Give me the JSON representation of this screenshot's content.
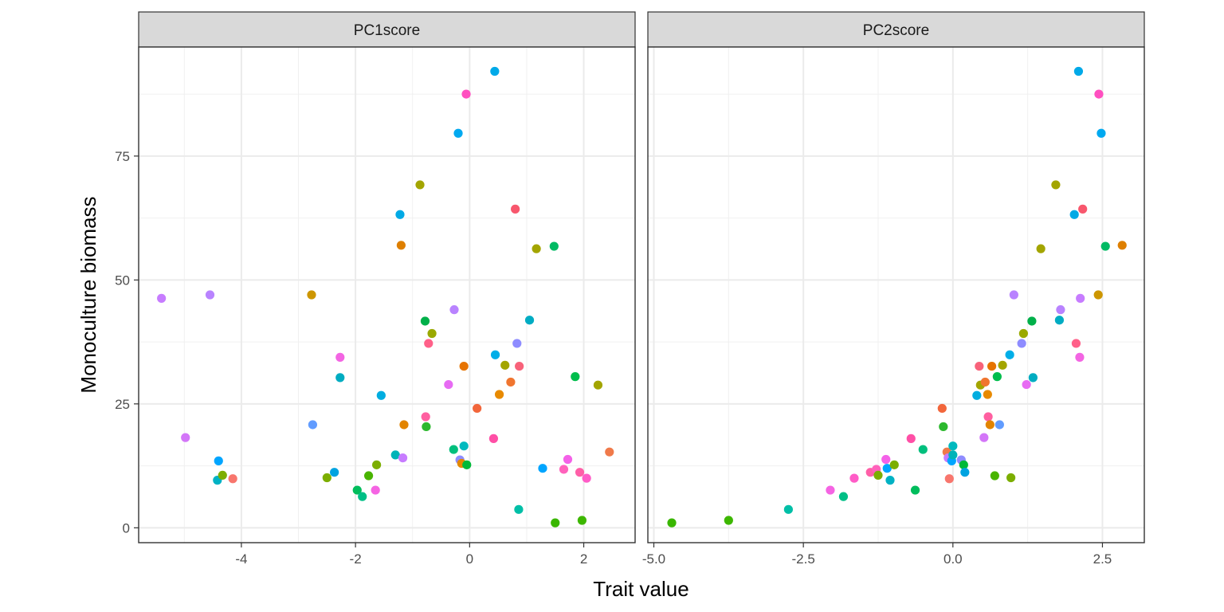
{
  "chart_data": {
    "type": "scatter",
    "xlabel": "Trait value",
    "ylabel": "Monoculture biomass",
    "legend": "none",
    "grid": true,
    "ylim": [
      -3.0,
      97.0
    ],
    "yticks": [
      0,
      25,
      50,
      75
    ],
    "panels": [
      {
        "strip": "PC1score",
        "xlim": [
          -5.8,
          2.9
        ],
        "xticks": [
          -4,
          -2,
          0,
          2
        ],
        "points": [
          {
            "x": -5.4,
            "y": 46.3,
            "color": "#C77CFF"
          },
          {
            "x": -4.55,
            "y": 47.0,
            "color": "#B983FF"
          },
          {
            "x": -4.98,
            "y": 18.2,
            "color": "#D376F8"
          },
          {
            "x": -4.4,
            "y": 13.5,
            "color": "#00A5FF"
          },
          {
            "x": -4.42,
            "y": 9.6,
            "color": "#00B2C4"
          },
          {
            "x": -4.33,
            "y": 10.6,
            "color": "#7CAE00"
          },
          {
            "x": -4.15,
            "y": 9.9,
            "color": "#F8766D"
          },
          {
            "x": -2.77,
            "y": 47.0,
            "color": "#CD9600"
          },
          {
            "x": -2.75,
            "y": 20.8,
            "color": "#619CFF"
          },
          {
            "x": -2.27,
            "y": 34.4,
            "color": "#F365E3"
          },
          {
            "x": -2.27,
            "y": 30.3,
            "color": "#00ACC1"
          },
          {
            "x": -2.5,
            "y": 10.1,
            "color": "#7CAE00"
          },
          {
            "x": -2.37,
            "y": 11.2,
            "color": "#00A3E0"
          },
          {
            "x": -1.97,
            "y": 7.6,
            "color": "#00BD5C"
          },
          {
            "x": -1.88,
            "y": 6.3,
            "color": "#00BF86"
          },
          {
            "x": -1.77,
            "y": 10.5,
            "color": "#49B400"
          },
          {
            "x": -1.63,
            "y": 12.7,
            "color": "#7CAE00"
          },
          {
            "x": -1.65,
            "y": 7.6,
            "color": "#F564E3"
          },
          {
            "x": -1.55,
            "y": 26.7,
            "color": "#00ADE0"
          },
          {
            "x": -1.3,
            "y": 14.7,
            "color": "#00B3B8"
          },
          {
            "x": -1.22,
            "y": 63.2,
            "color": "#00A9E5"
          },
          {
            "x": -1.2,
            "y": 57.0,
            "color": "#DE7F00"
          },
          {
            "x": -1.15,
            "y": 20.8,
            "color": "#E28400"
          },
          {
            "x": -1.17,
            "y": 14.1,
            "color": "#C77CFF"
          },
          {
            "x": -0.87,
            "y": 69.2,
            "color": "#A3A500"
          },
          {
            "x": -0.78,
            "y": 41.7,
            "color": "#00B04A"
          },
          {
            "x": -0.77,
            "y": 22.4,
            "color": "#FF5FA0"
          },
          {
            "x": -0.76,
            "y": 20.4,
            "color": "#2CB82E"
          },
          {
            "x": -0.72,
            "y": 37.2,
            "color": "#FF6089"
          },
          {
            "x": -0.66,
            "y": 39.2,
            "color": "#9AA900"
          },
          {
            "x": -0.37,
            "y": 28.9,
            "color": "#E76BF3"
          },
          {
            "x": -0.28,
            "y": 15.8,
            "color": "#00BF7D"
          },
          {
            "x": -0.27,
            "y": 44.0,
            "color": "#B983FF"
          },
          {
            "x": -0.2,
            "y": 79.6,
            "color": "#00A9F0"
          },
          {
            "x": -0.17,
            "y": 13.7,
            "color": "#8F8CFF"
          },
          {
            "x": -0.14,
            "y": 13.0,
            "color": "#E38900"
          },
          {
            "x": -0.1,
            "y": 32.6,
            "color": "#E67300"
          },
          {
            "x": -0.1,
            "y": 16.5,
            "color": "#00B9BE"
          },
          {
            "x": -0.05,
            "y": 12.7,
            "color": "#00B938"
          },
          {
            "x": -0.06,
            "y": 87.5,
            "color": "#FF4FC0"
          },
          {
            "x": 0.13,
            "y": 24.1,
            "color": "#F2663B"
          },
          {
            "x": 0.42,
            "y": 18.0,
            "color": "#FF4FA6"
          },
          {
            "x": 0.44,
            "y": 92.1,
            "color": "#00A9E8"
          },
          {
            "x": 0.45,
            "y": 34.9,
            "color": "#00AEE8"
          },
          {
            "x": 0.52,
            "y": 26.9,
            "color": "#E88A00"
          },
          {
            "x": 0.62,
            "y": 32.8,
            "color": "#A3A500"
          },
          {
            "x": 0.72,
            "y": 29.4,
            "color": "#F0752F"
          },
          {
            "x": 0.8,
            "y": 64.3,
            "color": "#F8576D"
          },
          {
            "x": 0.83,
            "y": 37.2,
            "color": "#8E8CFF"
          },
          {
            "x": 0.86,
            "y": 3.7,
            "color": "#00BFA7"
          },
          {
            "x": 0.87,
            "y": 32.6,
            "color": "#F8627A"
          },
          {
            "x": 1.05,
            "y": 41.9,
            "color": "#00ACC3"
          },
          {
            "x": 1.17,
            "y": 56.3,
            "color": "#A3A500"
          },
          {
            "x": 1.28,
            "y": 12.0,
            "color": "#00A5FF"
          },
          {
            "x": 1.48,
            "y": 56.8,
            "color": "#00BA63"
          },
          {
            "x": 1.5,
            "y": 1.0,
            "color": "#39B600"
          },
          {
            "x": 1.65,
            "y": 11.8,
            "color": "#FF62BC"
          },
          {
            "x": 1.72,
            "y": 13.8,
            "color": "#F461E8"
          },
          {
            "x": 1.85,
            "y": 30.5,
            "color": "#00BD4C"
          },
          {
            "x": 1.93,
            "y": 11.2,
            "color": "#FF5FA8"
          },
          {
            "x": 1.97,
            "y": 1.5,
            "color": "#3DB700"
          },
          {
            "x": 2.05,
            "y": 10.0,
            "color": "#FF5CC7"
          },
          {
            "x": 2.25,
            "y": 28.8,
            "color": "#A3A500"
          },
          {
            "x": 2.45,
            "y": 15.3,
            "color": "#F07A4A"
          }
        ]
      },
      {
        "strip": "PC2score",
        "xlim": [
          -5.1,
          3.2
        ],
        "xticks": [
          -5.0,
          -2.5,
          0.0,
          2.5
        ],
        "points": [
          {
            "x": -4.7,
            "y": 1.0,
            "color": "#39B600"
          },
          {
            "x": -3.75,
            "y": 1.5,
            "color": "#3DB700"
          },
          {
            "x": -2.75,
            "y": 3.7,
            "color": "#00BFA7"
          },
          {
            "x": -2.05,
            "y": 7.6,
            "color": "#F564E3"
          },
          {
            "x": -1.83,
            "y": 6.3,
            "color": "#00BF86"
          },
          {
            "x": -1.65,
            "y": 10.0,
            "color": "#FF5CC7"
          },
          {
            "x": -1.38,
            "y": 11.2,
            "color": "#FF5FA8"
          },
          {
            "x": -1.28,
            "y": 11.8,
            "color": "#FF62BC"
          },
          {
            "x": -1.25,
            "y": 10.6,
            "color": "#7CAE00"
          },
          {
            "x": -1.12,
            "y": 13.8,
            "color": "#F461E8"
          },
          {
            "x": -1.1,
            "y": 12.0,
            "color": "#00A5FF"
          },
          {
            "x": -1.05,
            "y": 9.6,
            "color": "#00B2C4"
          },
          {
            "x": -0.98,
            "y": 12.7,
            "color": "#7CAE00"
          },
          {
            "x": -0.7,
            "y": 18.0,
            "color": "#FF4FA6"
          },
          {
            "x": -0.5,
            "y": 15.8,
            "color": "#00BF7D"
          },
          {
            "x": -0.63,
            "y": 7.6,
            "color": "#00BD5C"
          },
          {
            "x": -0.18,
            "y": 24.1,
            "color": "#F2663B"
          },
          {
            "x": -0.16,
            "y": 20.4,
            "color": "#2CB82E"
          },
          {
            "x": -0.1,
            "y": 15.3,
            "color": "#F07A4A"
          },
          {
            "x": -0.08,
            "y": 14.1,
            "color": "#C77CFF"
          },
          {
            "x": -0.06,
            "y": 9.9,
            "color": "#F8766D"
          },
          {
            "x": -0.02,
            "y": 13.5,
            "color": "#00A5FF"
          },
          {
            "x": 0.0,
            "y": 16.5,
            "color": "#00B9BE"
          },
          {
            "x": 0.0,
            "y": 14.7,
            "color": "#00B3B8"
          },
          {
            "x": 0.14,
            "y": 13.7,
            "color": "#8F8CFF"
          },
          {
            "x": 0.18,
            "y": 12.7,
            "color": "#00B938"
          },
          {
            "x": 0.2,
            "y": 11.2,
            "color": "#00A3E0"
          },
          {
            "x": 0.4,
            "y": 26.7,
            "color": "#00ADE0"
          },
          {
            "x": 0.44,
            "y": 32.6,
            "color": "#F8627A"
          },
          {
            "x": 0.46,
            "y": 28.8,
            "color": "#A3A500"
          },
          {
            "x": 0.52,
            "y": 18.2,
            "color": "#D376F8"
          },
          {
            "x": 0.54,
            "y": 29.4,
            "color": "#F0752F"
          },
          {
            "x": 0.58,
            "y": 26.9,
            "color": "#E88A00"
          },
          {
            "x": 0.59,
            "y": 22.4,
            "color": "#FF5FA0"
          },
          {
            "x": 0.62,
            "y": 20.8,
            "color": "#E28400"
          },
          {
            "x": 0.65,
            "y": 32.6,
            "color": "#E67300"
          },
          {
            "x": 0.7,
            "y": 10.5,
            "color": "#49B400"
          },
          {
            "x": 0.74,
            "y": 30.5,
            "color": "#00BD4C"
          },
          {
            "x": 0.78,
            "y": 20.8,
            "color": "#619CFF"
          },
          {
            "x": 0.83,
            "y": 32.8,
            "color": "#A3A500"
          },
          {
            "x": 0.95,
            "y": 34.9,
            "color": "#00AEE8"
          },
          {
            "x": 0.97,
            "y": 10.1,
            "color": "#7CAE00"
          },
          {
            "x": 1.02,
            "y": 47.0,
            "color": "#B983FF"
          },
          {
            "x": 1.15,
            "y": 37.2,
            "color": "#8E8CFF"
          },
          {
            "x": 1.18,
            "y": 39.2,
            "color": "#9AA900"
          },
          {
            "x": 1.23,
            "y": 28.9,
            "color": "#E76BF3"
          },
          {
            "x": 1.32,
            "y": 41.7,
            "color": "#00B04A"
          },
          {
            "x": 1.34,
            "y": 30.3,
            "color": "#00ACC1"
          },
          {
            "x": 1.47,
            "y": 56.3,
            "color": "#A3A500"
          },
          {
            "x": 1.72,
            "y": 69.2,
            "color": "#A3A500"
          },
          {
            "x": 1.78,
            "y": 41.9,
            "color": "#00ACC3"
          },
          {
            "x": 1.8,
            "y": 44.0,
            "color": "#B983FF"
          },
          {
            "x": 2.03,
            "y": 63.2,
            "color": "#00A9E5"
          },
          {
            "x": 2.06,
            "y": 37.2,
            "color": "#FF6089"
          },
          {
            "x": 2.1,
            "y": 92.1,
            "color": "#00A9E8"
          },
          {
            "x": 2.12,
            "y": 34.4,
            "color": "#F365E3"
          },
          {
            "x": 2.13,
            "y": 46.3,
            "color": "#C77CFF"
          },
          {
            "x": 2.17,
            "y": 64.3,
            "color": "#F8576D"
          },
          {
            "x": 2.43,
            "y": 47.0,
            "color": "#CD9600"
          },
          {
            "x": 2.44,
            "y": 87.5,
            "color": "#FF4FC0"
          },
          {
            "x": 2.48,
            "y": 79.6,
            "color": "#00A9F0"
          },
          {
            "x": 2.55,
            "y": 56.8,
            "color": "#00BA63"
          },
          {
            "x": 2.83,
            "y": 57.0,
            "color": "#DE7F00"
          }
        ]
      }
    ]
  }
}
